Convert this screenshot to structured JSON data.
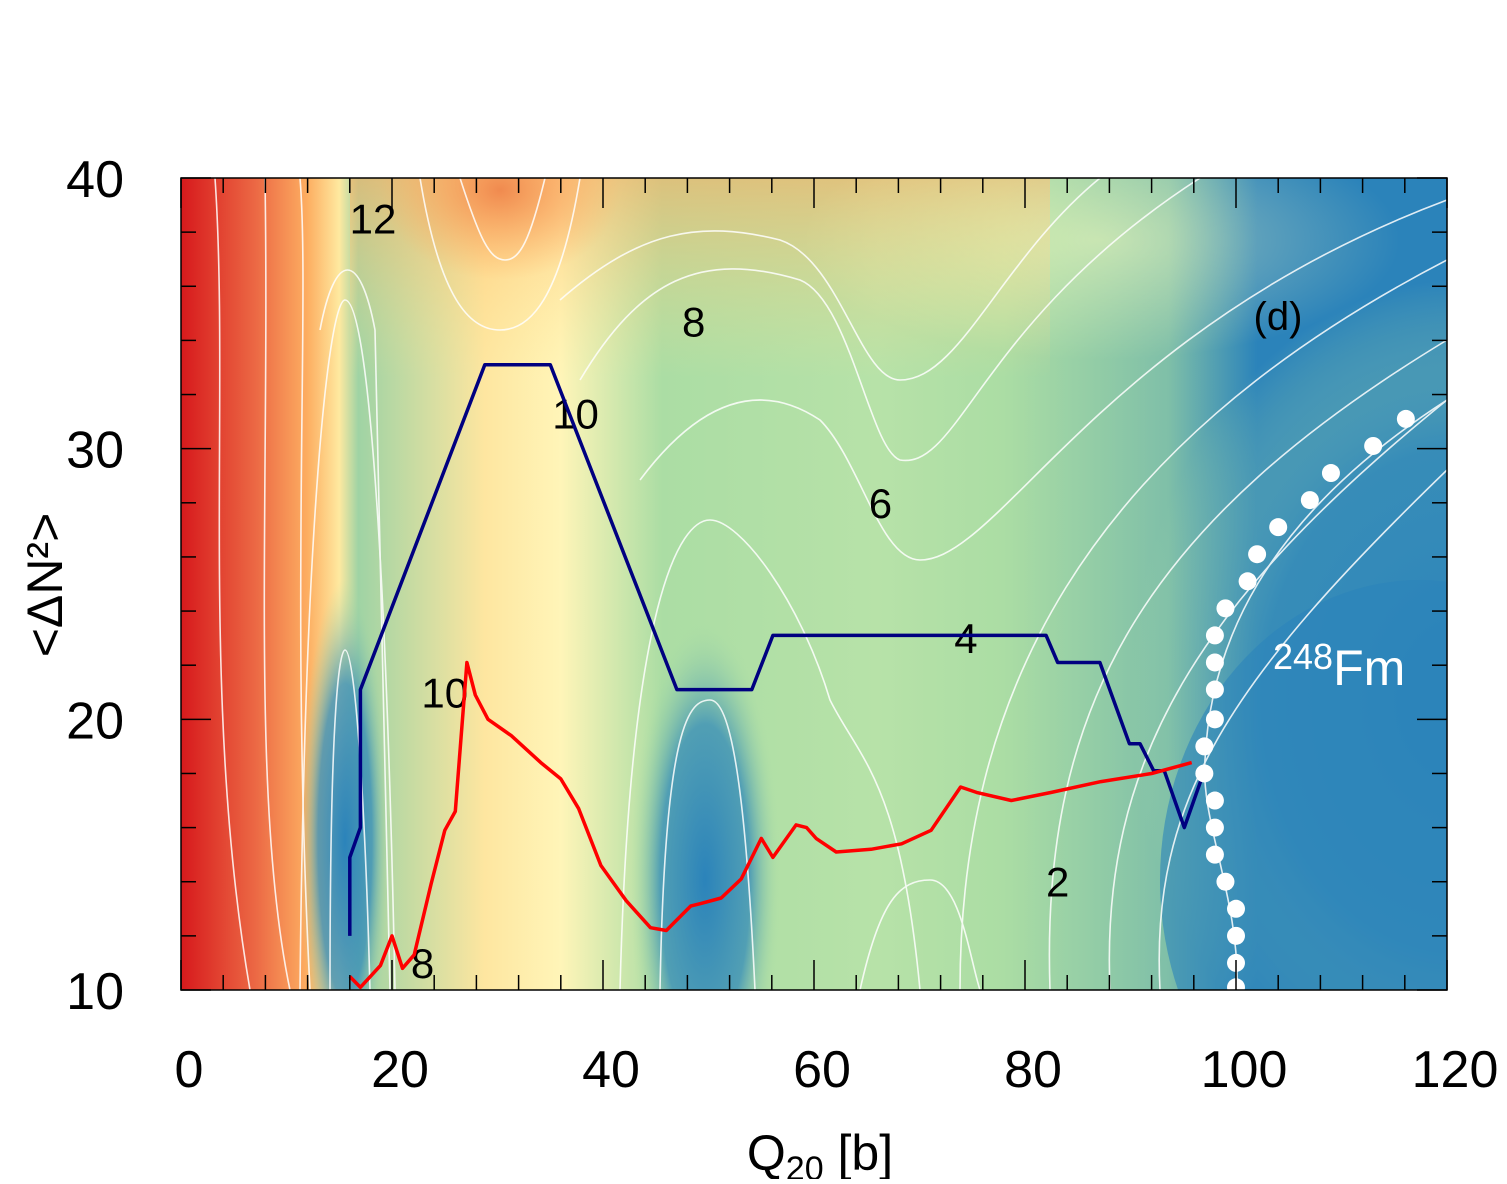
{
  "chart_data": {
    "type": "heatmap",
    "panel_label": "(d)",
    "nucleus_label": {
      "mass": "248",
      "element": "Fm"
    },
    "xlabel": {
      "main": "Q",
      "sub": "20",
      "unit": " [b]"
    },
    "ylabel": "<ΔN²>",
    "xlim": [
      0,
      120
    ],
    "ylim": [
      10,
      40
    ],
    "xticks": [
      0,
      20,
      40,
      60,
      80,
      100,
      120
    ],
    "yticks": [
      10,
      20,
      30,
      40
    ],
    "x_minor_step": 4,
    "y_minor_step": 2,
    "contour_labels": [
      {
        "text": "12",
        "x": 18.2,
        "y": 38.5
      },
      {
        "text": "8",
        "x": 48.6,
        "y": 34.7
      },
      {
        "text": "10",
        "x": 37.4,
        "y": 31.3
      },
      {
        "text": "6",
        "x": 66.3,
        "y": 28.0
      },
      {
        "text": "4",
        "x": 74.4,
        "y": 23.0
      },
      {
        "text": "10",
        "x": 25.0,
        "y": 21.0
      },
      {
        "text": "8",
        "x": 22.9,
        "y": 11.0
      },
      {
        "text": "2",
        "x": 83.1,
        "y": 14.0
      }
    ],
    "series": [
      {
        "name": "blue path",
        "color": "#000080",
        "points": [
          [
            16.0,
            12.0
          ],
          [
            16.0,
            14.9
          ],
          [
            17.0,
            16.0
          ],
          [
            17.0,
            21.1
          ],
          [
            28.8,
            33.1
          ],
          [
            35.0,
            33.1
          ],
          [
            47.0,
            21.1
          ],
          [
            54.1,
            21.1
          ],
          [
            56.1,
            23.1
          ],
          [
            82.0,
            23.1
          ],
          [
            83.1,
            22.1
          ],
          [
            87.1,
            22.1
          ],
          [
            89.9,
            19.1
          ],
          [
            90.9,
            19.1
          ],
          [
            92.2,
            18.1
          ],
          [
            93.2,
            18.1
          ],
          [
            95.1,
            16.0
          ],
          [
            97.0,
            18.1
          ]
        ]
      },
      {
        "name": "red path",
        "color": "#ff0000",
        "points": [
          [
            16.0,
            10.5
          ],
          [
            17.0,
            10.1
          ],
          [
            18.9,
            10.9
          ],
          [
            20.0,
            12.0
          ],
          [
            21.0,
            10.8
          ],
          [
            22.1,
            11.3
          ],
          [
            23.7,
            13.9
          ],
          [
            25.0,
            15.9
          ],
          [
            26.0,
            16.6
          ],
          [
            27.1,
            22.1
          ],
          [
            27.9,
            20.9
          ],
          [
            29.1,
            20.0
          ],
          [
            31.3,
            19.4
          ],
          [
            34.1,
            18.4
          ],
          [
            36.0,
            17.8
          ],
          [
            37.7,
            16.7
          ],
          [
            39.8,
            14.6
          ],
          [
            42.2,
            13.3
          ],
          [
            44.5,
            12.3
          ],
          [
            46.0,
            12.2
          ],
          [
            48.3,
            13.1
          ],
          [
            49.3,
            13.2
          ],
          [
            51.2,
            13.4
          ],
          [
            53.1,
            14.1
          ],
          [
            55.0,
            15.6
          ],
          [
            56.1,
            14.9
          ],
          [
            58.3,
            16.1
          ],
          [
            59.3,
            16.0
          ],
          [
            60.2,
            15.6
          ],
          [
            62.1,
            15.1
          ],
          [
            65.4,
            15.2
          ],
          [
            68.3,
            15.4
          ],
          [
            71.1,
            15.9
          ],
          [
            73.9,
            17.5
          ],
          [
            75.4,
            17.3
          ],
          [
            78.7,
            17.0
          ],
          [
            82.5,
            17.3
          ],
          [
            87.2,
            17.7
          ],
          [
            92.0,
            18.0
          ],
          [
            95.8,
            18.4
          ]
        ]
      },
      {
        "name": "white dots",
        "color": "#ffffff",
        "points": [
          [
            100.0,
            10.1
          ],
          [
            100.0,
            11.0
          ],
          [
            100.0,
            12.0
          ],
          [
            100.0,
            13.0
          ],
          [
            99.0,
            14.0
          ],
          [
            98.0,
            15.0
          ],
          [
            98.0,
            16.0
          ],
          [
            98.0,
            17.0
          ],
          [
            97.0,
            18.0
          ],
          [
            97.0,
            19.0
          ],
          [
            98.0,
            20.0
          ],
          [
            98.0,
            21.1
          ],
          [
            98.0,
            22.1
          ],
          [
            98.0,
            23.1
          ],
          [
            99.0,
            24.1
          ],
          [
            101.1,
            25.1
          ],
          [
            102.0,
            26.1
          ],
          [
            104.0,
            27.1
          ],
          [
            107.0,
            28.1
          ],
          [
            109.0,
            29.1
          ],
          [
            113.0,
            30.1
          ],
          [
            116.1,
            31.1
          ]
        ]
      }
    ]
  }
}
